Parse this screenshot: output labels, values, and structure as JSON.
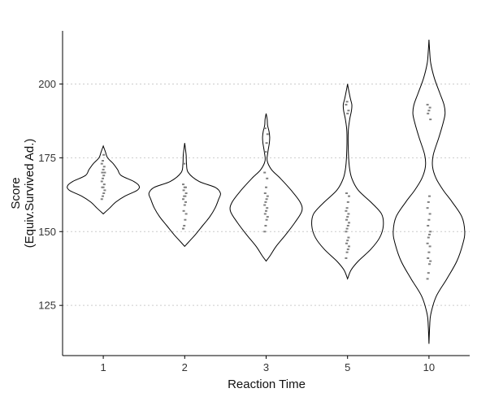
{
  "chart_data": {
    "type": "violin",
    "xlabel": "Reaction Time",
    "ylabel_lines": [
      "Score",
      "(Equiv.Survived Ad.)"
    ],
    "categories": [
      "1",
      "2",
      "3",
      "5",
      "10"
    ],
    "ylim": [
      108,
      218
    ],
    "yticks": [
      125,
      150,
      175,
      200
    ],
    "grid": "horizontal dotted at y ticks",
    "colors": {
      "outline": "#000000",
      "points": "#808080",
      "grid": "#cccccc"
    },
    "violins": [
      {
        "category": "1",
        "profile": [
          [
            156,
            0
          ],
          [
            158,
            0.18
          ],
          [
            160,
            0.35
          ],
          [
            162,
            0.6
          ],
          [
            164,
            0.95
          ],
          [
            165.5,
            1.0
          ],
          [
            167,
            0.85
          ],
          [
            169,
            0.5
          ],
          [
            171,
            0.4
          ],
          [
            173,
            0.28
          ],
          [
            175,
            0.12
          ],
          [
            177,
            0.06
          ],
          [
            179,
            0
          ]
        ],
        "points": [
          161,
          162,
          163,
          164,
          165,
          165,
          166,
          167,
          168,
          169,
          170,
          170,
          171,
          172,
          173,
          174,
          176
        ]
      },
      {
        "category": "2",
        "profile": [
          [
            145,
            0
          ],
          [
            147,
            0.15
          ],
          [
            149,
            0.3
          ],
          [
            152,
            0.5
          ],
          [
            155,
            0.7
          ],
          [
            158,
            0.85
          ],
          [
            161,
            0.95
          ],
          [
            163,
            1.0
          ],
          [
            165,
            0.85
          ],
          [
            167,
            0.4
          ],
          [
            170,
            0.1
          ],
          [
            173,
            0.05
          ],
          [
            176,
            0.04
          ],
          [
            180,
            0
          ]
        ],
        "points": [
          151,
          152,
          154,
          156,
          157,
          159,
          160,
          161,
          162,
          162,
          163,
          164,
          165,
          165,
          166,
          173
        ]
      },
      {
        "category": "3",
        "profile": [
          [
            140,
            0
          ],
          [
            142,
            0.12
          ],
          [
            145,
            0.28
          ],
          [
            149,
            0.55
          ],
          [
            153,
            0.8
          ],
          [
            157,
            1.0
          ],
          [
            160,
            0.95
          ],
          [
            164,
            0.7
          ],
          [
            168,
            0.4
          ],
          [
            171,
            0.15
          ],
          [
            174,
            0.03
          ],
          [
            177,
            0.05
          ],
          [
            180,
            0.09
          ],
          [
            182,
            0.1
          ],
          [
            184,
            0.08
          ],
          [
            186,
            0.04
          ],
          [
            188,
            0.03
          ],
          [
            190,
            0
          ]
        ],
        "points": [
          150,
          152,
          154,
          155,
          156,
          157,
          158,
          159,
          160,
          161,
          162,
          163,
          165,
          168,
          170,
          177,
          180,
          183,
          185
        ]
      },
      {
        "category": "5",
        "profile": [
          [
            134,
            0
          ],
          [
            137,
            0.1
          ],
          [
            140,
            0.3
          ],
          [
            144,
            0.65
          ],
          [
            148,
            0.9
          ],
          [
            152,
            1.0
          ],
          [
            156,
            0.95
          ],
          [
            160,
            0.65
          ],
          [
            164,
            0.3
          ],
          [
            168,
            0.12
          ],
          [
            172,
            0.05
          ],
          [
            178,
            0.02
          ],
          [
            184,
            0.02
          ],
          [
            188,
            0.06
          ],
          [
            191,
            0.11
          ],
          [
            193,
            0.12
          ],
          [
            195,
            0.08
          ],
          [
            198,
            0.03
          ],
          [
            200,
            0
          ]
        ],
        "points": [
          141,
          143,
          144,
          145,
          146,
          147,
          148,
          150,
          151,
          152,
          153,
          154,
          155,
          156,
          157,
          158,
          160,
          162,
          163,
          190,
          191,
          193,
          194
        ]
      },
      {
        "category": "10",
        "profile": [
          [
            112,
            0
          ],
          [
            118,
            0.02
          ],
          [
            122,
            0.05
          ],
          [
            128,
            0.2
          ],
          [
            134,
            0.5
          ],
          [
            140,
            0.78
          ],
          [
            146,
            0.95
          ],
          [
            150,
            1.0
          ],
          [
            155,
            0.92
          ],
          [
            160,
            0.65
          ],
          [
            164,
            0.4
          ],
          [
            168,
            0.2
          ],
          [
            172,
            0.1
          ],
          [
            176,
            0.12
          ],
          [
            182,
            0.28
          ],
          [
            187,
            0.4
          ],
          [
            190,
            0.45
          ],
          [
            193,
            0.42
          ],
          [
            197,
            0.3
          ],
          [
            202,
            0.15
          ],
          [
            207,
            0.05
          ],
          [
            211,
            0.02
          ],
          [
            215,
            0
          ]
        ],
        "points": [
          134,
          136,
          139,
          140,
          141,
          143,
          145,
          146,
          148,
          149,
          150,
          152,
          154,
          156,
          158,
          160,
          162,
          188,
          190,
          191,
          192,
          193
        ]
      }
    ]
  }
}
